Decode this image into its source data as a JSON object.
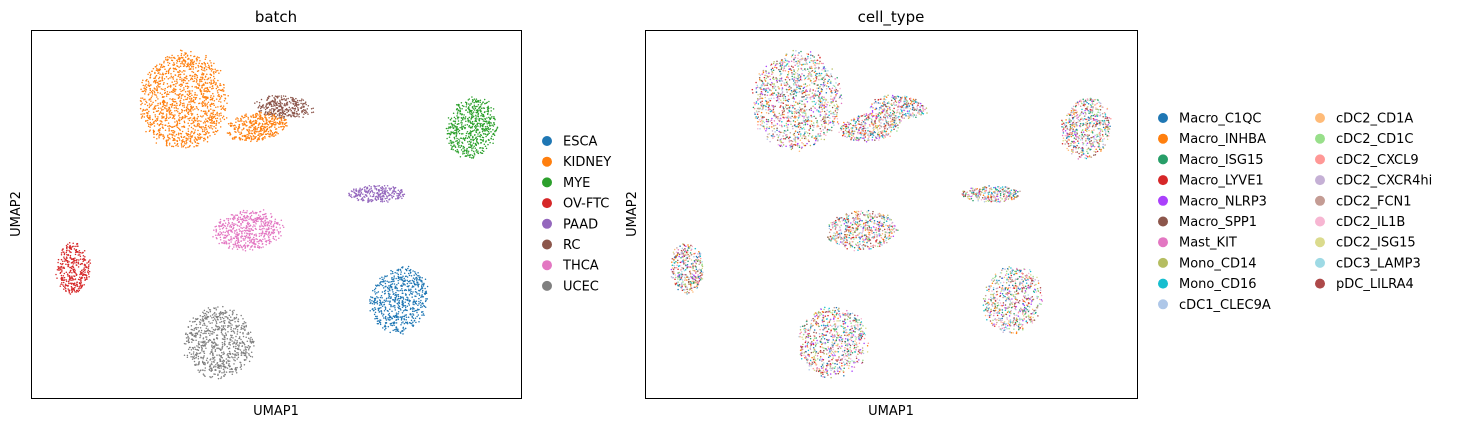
{
  "panels": [
    {
      "title": "batch",
      "xlabel": "UMAP1",
      "ylabel": "UMAP2",
      "legend": [
        {
          "label": "ESCA",
          "color": "#1f77b4"
        },
        {
          "label": "KIDNEY",
          "color": "#ff7f0e"
        },
        {
          "label": "MYE",
          "color": "#2ca02c"
        },
        {
          "label": "OV-FTC",
          "color": "#d62728"
        },
        {
          "label": "PAAD",
          "color": "#9467bd"
        },
        {
          "label": "RC",
          "color": "#8c564b"
        },
        {
          "label": "THCA",
          "color": "#e377c2"
        },
        {
          "label": "UCEC",
          "color": "#7f7f7f"
        }
      ]
    },
    {
      "title": "cell_type",
      "xlabel": "UMAP1",
      "ylabel": "UMAP2",
      "legend": [
        {
          "label": "Macro_C1QC",
          "color": "#1f77b4"
        },
        {
          "label": "Macro_INHBA",
          "color": "#ff7f0e"
        },
        {
          "label": "Macro_ISG15",
          "color": "#279e68"
        },
        {
          "label": "Macro_LYVE1",
          "color": "#d62728"
        },
        {
          "label": "Macro_NLRP3",
          "color": "#aa40fc"
        },
        {
          "label": "Macro_SPP1",
          "color": "#8c564b"
        },
        {
          "label": "Mast_KIT",
          "color": "#e377c2"
        },
        {
          "label": "Mono_CD14",
          "color": "#b5bd61"
        },
        {
          "label": "Mono_CD16",
          "color": "#17becf"
        },
        {
          "label": "cDC1_CLEC9A",
          "color": "#aec7e8"
        },
        {
          "label": "cDC2_CD1A",
          "color": "#ffbb78"
        },
        {
          "label": "cDC2_CD1C",
          "color": "#98df8a"
        },
        {
          "label": "cDC2_CXCL9",
          "color": "#ff9896"
        },
        {
          "label": "cDC2_CXCR4hi",
          "color": "#c5b0d5"
        },
        {
          "label": "cDC2_FCN1",
          "color": "#c49c94"
        },
        {
          "label": "cDC2_IL1B",
          "color": "#f7b6d2"
        },
        {
          "label": "cDC2_ISG15",
          "color": "#dbdb8d"
        },
        {
          "label": "cDC3_LAMP3",
          "color": "#9edae5"
        },
        {
          "label": "pDC_LILRA4",
          "color": "#ad494a"
        }
      ]
    }
  ],
  "chart_data": [
    {
      "type": "scatter",
      "title": "batch",
      "xlabel": "UMAP1",
      "ylabel": "UMAP2",
      "ticks": "none",
      "grid": false,
      "legend_position": "right",
      "clusters": [
        {
          "batch": "KIDNEY",
          "center": [
            3.0,
            8.4
          ]
        },
        {
          "batch": "RC",
          "center": [
            5.3,
            8.1
          ]
        },
        {
          "batch": "MYE",
          "center": [
            9.0,
            7.8
          ]
        },
        {
          "batch": "PAAD",
          "center": [
            7.2,
            5.4
          ]
        },
        {
          "batch": "THCA",
          "center": [
            4.4,
            4.4
          ]
        },
        {
          "batch": "OV-FTC",
          "center": [
            0.7,
            3.4
          ]
        },
        {
          "batch": "ESCA",
          "center": [
            7.5,
            2.8
          ]
        },
        {
          "batch": "UCEC",
          "center": [
            3.8,
            1.6
          ]
        }
      ]
    },
    {
      "type": "scatter",
      "title": "cell_type",
      "xlabel": "UMAP1",
      "ylabel": "UMAP2",
      "ticks": "none",
      "grid": false,
      "legend_position": "right",
      "note": "Same embedding as the batch panel, points colored by cell type; cell types mixed within every cluster."
    }
  ]
}
